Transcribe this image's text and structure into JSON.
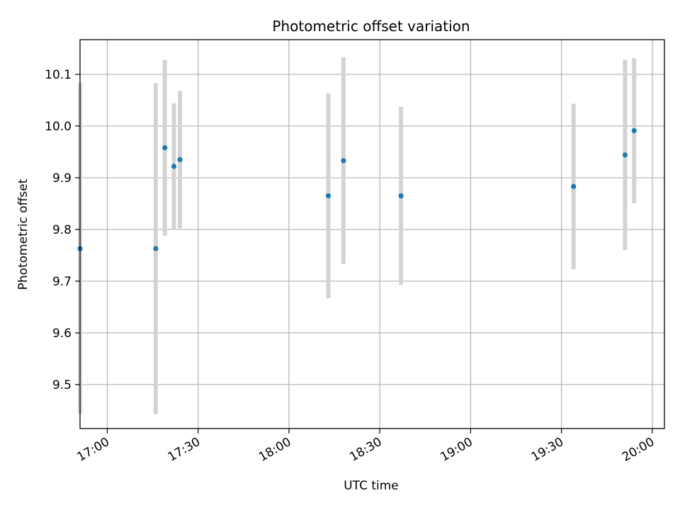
{
  "chart_data": {
    "type": "scatter",
    "title": "Photometric offset variation",
    "xlabel": "UTC time",
    "ylabel": "Photometric offset",
    "x_axis": {
      "kind": "time",
      "range": [
        "16:51",
        "20:04"
      ],
      "ticks": [
        "17:00",
        "17:30",
        "18:00",
        "18:30",
        "19:00",
        "19:30",
        "20:00"
      ],
      "tick_label_rotation_deg": 30
    },
    "y_axis": {
      "range": [
        9.415,
        10.167
      ],
      "ticks": [
        "9.5",
        "9.6",
        "9.7",
        "9.8",
        "9.9",
        "10.0",
        "10.1"
      ]
    },
    "grid": true,
    "legend": "none",
    "points": [
      {
        "x": "16:51",
        "y": 9.763,
        "ylow": 9.443,
        "yhigh": 10.083
      },
      {
        "x": "17:16",
        "y": 9.763,
        "ylow": 9.443,
        "yhigh": 10.083
      },
      {
        "x": "17:19",
        "y": 9.958,
        "ylow": 9.788,
        "yhigh": 10.128
      },
      {
        "x": "17:22",
        "y": 9.922,
        "ylow": 9.8,
        "yhigh": 10.044
      },
      {
        "x": "17:24",
        "y": 9.935,
        "ylow": 9.802,
        "yhigh": 10.068
      },
      {
        "x": "18:13",
        "y": 9.865,
        "ylow": 9.667,
        "yhigh": 10.063
      },
      {
        "x": "18:18",
        "y": 9.933,
        "ylow": 9.733,
        "yhigh": 10.133
      },
      {
        "x": "18:37",
        "y": 9.865,
        "ylow": 9.693,
        "yhigh": 10.037
      },
      {
        "x": "19:34",
        "y": 9.883,
        "ylow": 9.723,
        "yhigh": 10.043
      },
      {
        "x": "19:51",
        "y": 9.944,
        "ylow": 9.76,
        "yhigh": 10.128
      },
      {
        "x": "19:54",
        "y": 9.991,
        "ylow": 9.851,
        "yhigh": 10.131
      }
    ],
    "colors": {
      "point": "#1f77b4",
      "errorbar": "#d3d3d3",
      "grid": "#b0b0b0",
      "axes": "#000000"
    }
  }
}
